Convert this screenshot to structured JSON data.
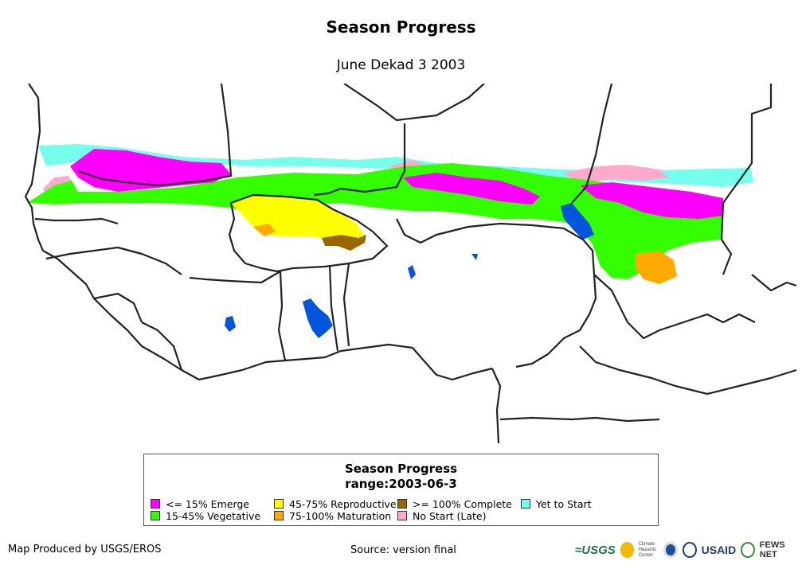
{
  "map": {
    "title": "Season Progress",
    "subtitle": "June Dekad 3 2003"
  },
  "legend": {
    "title": "Season Progress",
    "range": "range:2003-06-3",
    "items": [
      {
        "label": "<= 15% Emerge",
        "color": "#ff00ff"
      },
      {
        "label": "15-45% Vegetative",
        "color": "#33ff00"
      },
      {
        "label": "45-75% Reproductive",
        "color": "#ffff00"
      },
      {
        "label": "75-100% Maturation",
        "color": "#ffaa00"
      },
      {
        "label": ">= 100% Complete",
        "color": "#996600"
      },
      {
        "label": "No Start (Late)",
        "color": "#ffaacc"
      },
      {
        "label": "Yet to Start",
        "color": "#77ffee"
      }
    ]
  },
  "footer": {
    "producer": "Map Produced by USGS/EROS",
    "source": "Source: version final"
  },
  "logos": {
    "usgs": "≈USGS",
    "chc": "Climate Hazards Center",
    "usaid": "USAID",
    "fewsnet": "FEWS NET"
  },
  "colors": {
    "water": "#0055dd",
    "border": "#222222"
  }
}
